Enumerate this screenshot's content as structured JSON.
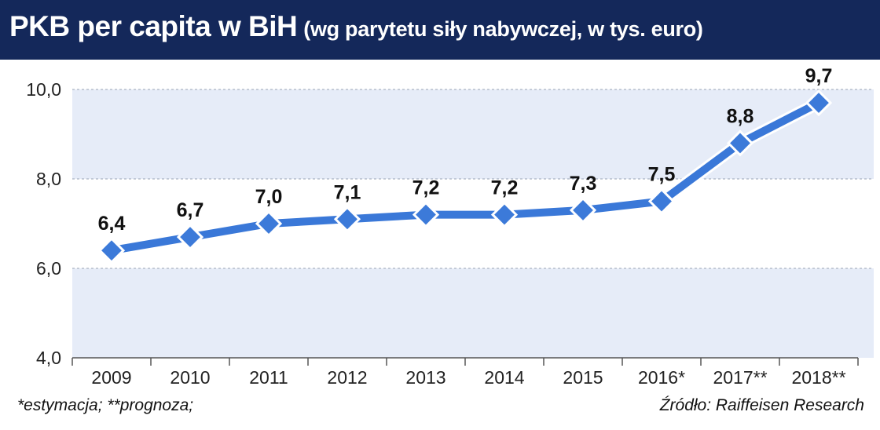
{
  "header": {
    "title": "PKB per capita w BiH",
    "subtitle": "(wg parytetu siły nabywczej, w tys. euro)"
  },
  "colors": {
    "header_bg": "#14285a",
    "band_light": "#e6ecf8",
    "line": "#3a78d8",
    "marker": "#3c7ad9",
    "marker_stroke": "#ffffff"
  },
  "chart_data": {
    "type": "line",
    "categories": [
      "2009",
      "2010",
      "2011",
      "2012",
      "2013",
      "2014",
      "2015",
      "2016*",
      "2017**",
      "2018**"
    ],
    "values": [
      6.4,
      6.7,
      7.0,
      7.1,
      7.2,
      7.2,
      7.3,
      7.5,
      8.8,
      9.7
    ],
    "value_labels": [
      "6,4",
      "6,7",
      "7,0",
      "7,1",
      "7,2",
      "7,2",
      "7,3",
      "7,5",
      "8,8",
      "9,7"
    ],
    "ylim": [
      4.0,
      10.0
    ],
    "yticks": [
      4.0,
      6.0,
      8.0,
      10.0
    ],
    "ytick_labels": [
      "4,0",
      "6,0",
      "8,0",
      "10,0"
    ],
    "grid": true,
    "legend": "none"
  },
  "footer": {
    "note": "*estymacja; **prognoza;",
    "source": "Źródło: Raiffeisen Research"
  }
}
